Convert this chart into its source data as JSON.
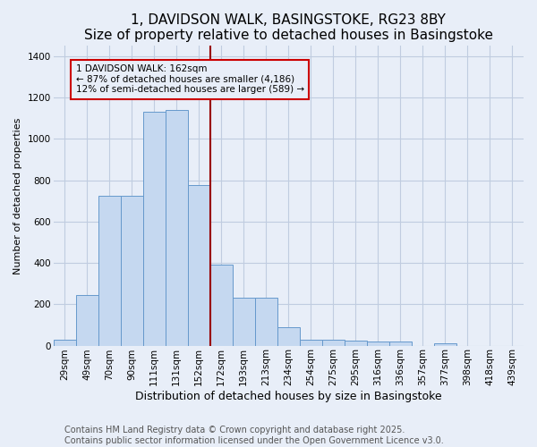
{
  "title": "1, DAVIDSON WALK, BASINGSTOKE, RG23 8BY",
  "subtitle": "Size of property relative to detached houses in Basingstoke",
  "xlabel": "Distribution of detached houses by size in Basingstoke",
  "ylabel": "Number of detached properties",
  "categories": [
    "29sqm",
    "49sqm",
    "70sqm",
    "90sqm",
    "111sqm",
    "131sqm",
    "152sqm",
    "172sqm",
    "193sqm",
    "213sqm",
    "234sqm",
    "254sqm",
    "275sqm",
    "295sqm",
    "316sqm",
    "336sqm",
    "357sqm",
    "377sqm",
    "398sqm",
    "418sqm",
    "439sqm"
  ],
  "values": [
    30,
    245,
    725,
    725,
    1130,
    1140,
    775,
    390,
    230,
    230,
    90,
    30,
    30,
    25,
    20,
    20,
    0,
    10,
    0,
    0,
    0
  ],
  "bar_color": "#c5d8f0",
  "bar_edge_color": "#6699cc",
  "line_color": "#990000",
  "line_x_index": 6.5,
  "annotation_text": "1 DAVIDSON WALK: 162sqm\n← 87% of detached houses are smaller (4,186)\n12% of semi-detached houses are larger (589) →",
  "annotation_box_color": "#cc0000",
  "ylim": [
    0,
    1450
  ],
  "yticks": [
    0,
    200,
    400,
    600,
    800,
    1000,
    1200,
    1400
  ],
  "footer_line1": "Contains HM Land Registry data © Crown copyright and database right 2025.",
  "footer_line2": "Contains public sector information licensed under the Open Government Licence v3.0.",
  "bg_color": "#e8eef8",
  "grid_color": "#c0cce0",
  "title_fontsize": 11,
  "xlabel_fontsize": 9,
  "ylabel_fontsize": 8,
  "tick_fontsize": 7.5,
  "annotation_fontsize": 7.5,
  "footer_fontsize": 7
}
